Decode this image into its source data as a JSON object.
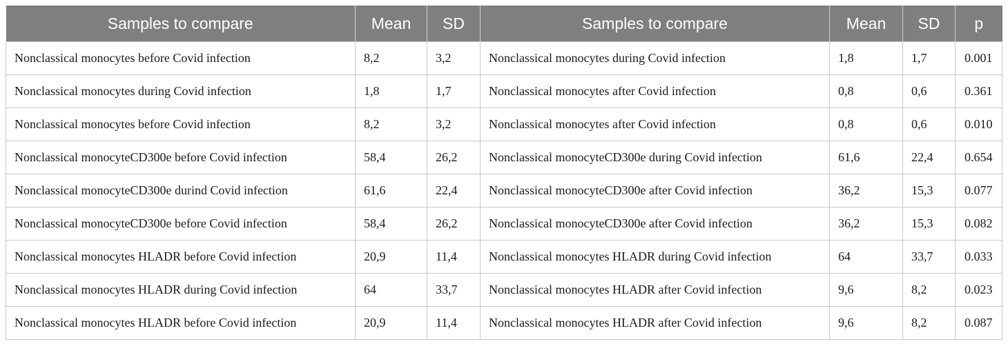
{
  "header": {
    "samples_a": "Samples to compare",
    "mean_a": "Mean",
    "sd_a": "SD",
    "samples_b": "Samples to compare",
    "mean_b": "Mean",
    "sd_b": "SD",
    "p": "p"
  },
  "rows": [
    {
      "sample_a": "Nonclassical monocytes before Covid infection",
      "mean_a": "8,2",
      "sd_a": "3,2",
      "sample_b": "Nonclassical monocytes during Covid infection",
      "mean_b": "1,8",
      "sd_b": "1,7",
      "p": "0.001"
    },
    {
      "sample_a": "Nonclassical monocytes during Covid infection",
      "mean_a": "1,8",
      "sd_a": "1,7",
      "sample_b": "Nonclassical monocytes after Covid infection",
      "mean_b": "0,8",
      "sd_b": "0,6",
      "p": "0.361"
    },
    {
      "sample_a": "Nonclassical monocytes before Covid infection",
      "mean_a": "8,2",
      "sd_a": "3,2",
      "sample_b": "Nonclassical monocytes after Covid infection",
      "mean_b": "0,8",
      "sd_b": "0,6",
      "p": "0.010"
    },
    {
      "sample_a": "Nonclassical monocyteCD300e before Covid infection",
      "mean_a": "58,4",
      "sd_a": "26,2",
      "sample_b": "Nonclassical monocyteCD300e during Covid infection",
      "mean_b": "61,6",
      "sd_b": "22,4",
      "p": "0.654"
    },
    {
      "sample_a": "Nonclassical monocyteCD300e durind Covid infection",
      "mean_a": "61,6",
      "sd_a": "22,4",
      "sample_b": "Nonclassical monocyteCD300e after Covid infection",
      "mean_b": "36,2",
      "sd_b": "15,3",
      "p": "0.077"
    },
    {
      "sample_a": "Nonclassical monocyteCD300e before Covid infection",
      "mean_a": "58,4",
      "sd_a": "26,2",
      "sample_b": "Nonclassical monocyteCD300e after Covid infection",
      "mean_b": "36,2",
      "sd_b": "15,3",
      "p": "0.082"
    },
    {
      "sample_a": "Nonclassical monocytes HLADR before Covid infection",
      "mean_a": "20,9",
      "sd_a": "11,4",
      "sample_b": "Nonclassical monocytes HLADR during Covid infection",
      "mean_b": "64",
      "sd_b": "33,7",
      "p": "0.033"
    },
    {
      "sample_a": "Nonclassical monocytes HLADR during Covid infection",
      "mean_a": "64",
      "sd_a": "33,7",
      "sample_b": "Nonclassical monocytes HLADR after Covid infection",
      "mean_b": "9,6",
      "sd_b": "8,2",
      "p": "0.023"
    },
    {
      "sample_a": "Nonclassical monocytes HLADR before Covid infection",
      "mean_a": "20,9",
      "sd_a": "11,4",
      "sample_b": "Nonclassical monocytes HLADR after Covid infection",
      "mean_b": "9,6",
      "sd_b": "8,2",
      "p": "0.087"
    }
  ]
}
